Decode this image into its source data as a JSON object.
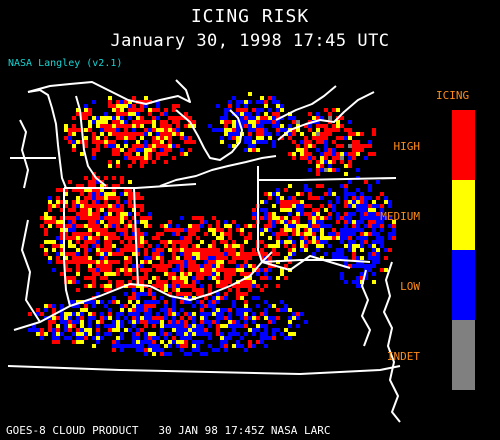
{
  "title": "ICING RISK",
  "subtitle": "January 30, 1998 17:45 UTC",
  "credit": "NASA Langley (v2.1)",
  "footer": "GOES-8 CLOUD PRODUCT   30 JAN 98 17:45Z NASA LARC",
  "legend": {
    "title": "ICING",
    "items": [
      {
        "label": "HIGH",
        "color": "#ff0000"
      },
      {
        "label": "MEDIUM",
        "color": "#ffff00"
      },
      {
        "label": "LOW",
        "color": "#0000ff"
      },
      {
        "label": "INDET",
        "color": "#808080"
      }
    ]
  },
  "colors": {
    "boundary": "#ffffff",
    "credit": "#19d3d3",
    "legend_text": "#ff8c1a"
  }
}
